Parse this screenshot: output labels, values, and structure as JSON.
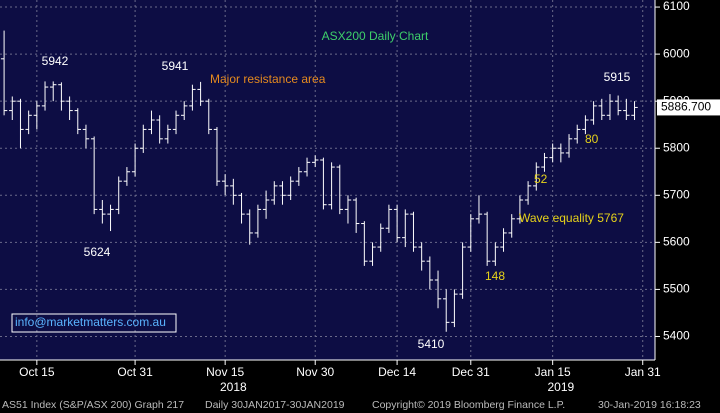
{
  "chart_data": {
    "type": "ohlc",
    "title": "ASX200 Daily Chart",
    "open": [
      5990,
      5880,
      5900,
      5840,
      5870,
      5890,
      5930,
      5935,
      5900,
      5880,
      5840,
      5820,
      5670,
      5660,
      5670,
      5730,
      5750,
      5800,
      5840,
      5860,
      5820,
      5840,
      5870,
      5890,
      5925,
      5900,
      5840,
      5730,
      5720,
      5700,
      5660,
      5620,
      5670,
      5690,
      5720,
      5700,
      5730,
      5750,
      5770,
      5775,
      5680,
      5760,
      5670,
      5690,
      5640,
      5560,
      5590,
      5630,
      5670,
      5610,
      5660,
      5590,
      5560,
      5520,
      5480,
      5430,
      5490,
      5590,
      5650,
      5660,
      5560,
      5590,
      5620,
      5650,
      5690,
      5720,
      5760,
      5780,
      5800,
      5790,
      5820,
      5840,
      5860,
      5890,
      5870,
      5900,
      5880,
      5870
    ],
    "high": [
      6050,
      5910,
      5905,
      5880,
      5900,
      5942,
      5942,
      5940,
      5910,
      5885,
      5850,
      5825,
      5690,
      5680,
      5740,
      5760,
      5810,
      5850,
      5880,
      5870,
      5850,
      5880,
      5900,
      5935,
      5941,
      5905,
      5845,
      5745,
      5735,
      5705,
      5670,
      5680,
      5710,
      5730,
      5730,
      5740,
      5760,
      5780,
      5785,
      5780,
      5770,
      5765,
      5700,
      5695,
      5645,
      5600,
      5640,
      5680,
      5680,
      5670,
      5665,
      5600,
      5570,
      5540,
      5500,
      5500,
      5600,
      5660,
      5700,
      5665,
      5600,
      5630,
      5660,
      5700,
      5730,
      5770,
      5790,
      5810,
      5810,
      5830,
      5850,
      5870,
      5900,
      5905,
      5915,
      5912,
      5905,
      5900
    ],
    "low": [
      5870,
      5860,
      5800,
      5830,
      5840,
      5880,
      5900,
      5880,
      5860,
      5830,
      5800,
      5660,
      5640,
      5624,
      5660,
      5720,
      5740,
      5790,
      5830,
      5810,
      5810,
      5830,
      5860,
      5880,
      5890,
      5830,
      5720,
      5700,
      5680,
      5640,
      5595,
      5610,
      5650,
      5680,
      5680,
      5690,
      5720,
      5740,
      5760,
      5670,
      5670,
      5660,
      5640,
      5620,
      5550,
      5550,
      5580,
      5620,
      5600,
      5590,
      5580,
      5540,
      5500,
      5460,
      5410,
      5420,
      5480,
      5580,
      5640,
      5550,
      5550,
      5580,
      5610,
      5640,
      5680,
      5710,
      5750,
      5770,
      5770,
      5780,
      5810,
      5830,
      5850,
      5860,
      5860,
      5870,
      5860,
      5860
    ],
    "close": [
      5880,
      5900,
      5840,
      5870,
      5890,
      5930,
      5935,
      5900,
      5880,
      5840,
      5820,
      5670,
      5660,
      5670,
      5730,
      5750,
      5800,
      5840,
      5860,
      5820,
      5840,
      5870,
      5890,
      5925,
      5900,
      5840,
      5730,
      5720,
      5700,
      5660,
      5620,
      5670,
      5690,
      5720,
      5700,
      5730,
      5750,
      5770,
      5775,
      5680,
      5760,
      5670,
      5690,
      5640,
      5560,
      5590,
      5630,
      5670,
      5610,
      5660,
      5590,
      5560,
      5520,
      5480,
      5430,
      5490,
      5590,
      5650,
      5660,
      5560,
      5590,
      5620,
      5650,
      5690,
      5720,
      5760,
      5780,
      5800,
      5790,
      5820,
      5840,
      5860,
      5890,
      5870,
      5900,
      5880,
      5870,
      5886.7
    ],
    "last_price": {
      "value": 5886.7,
      "label": "5886.700"
    },
    "xlim": [
      -0.5,
      79.5
    ],
    "xticks": [
      {
        "value": 4,
        "label": "Oct 15"
      },
      {
        "value": 16,
        "label": "Oct 31"
      },
      {
        "value": 27,
        "label": "Nov 15"
      },
      {
        "value": 38,
        "label": "Nov 30"
      },
      {
        "value": 48,
        "label": "Dec 14"
      },
      {
        "value": 57,
        "label": "Dec 31"
      },
      {
        "value": 67,
        "label": "Jan 15"
      },
      {
        "value": 78,
        "label": "Jan 31"
      }
    ],
    "year_ticks": [
      {
        "value": 28,
        "label": "2018"
      },
      {
        "value": 68,
        "label": "2019"
      }
    ],
    "ylim": [
      5350,
      6115
    ],
    "yticks": [
      5400,
      5500,
      5600,
      5700,
      5800,
      5900,
      6000,
      6100
    ],
    "grid": true,
    "annotations": [
      "5942",
      "5941",
      "5624",
      "5410",
      "5915",
      "Major resistance area",
      "148",
      "52",
      "80",
      "Wave equality 5767"
    ],
    "source_box": "info@marketmatters.com.au",
    "footer": [
      "AS51 Index (S&P/ASX 200) Graph 217",
      "Daily 30JAN2017-30JAN2019",
      "Copyright© 2019 Bloomberg Finance L.P.",
      "30-Jan-2019 16:18:23"
    ]
  }
}
